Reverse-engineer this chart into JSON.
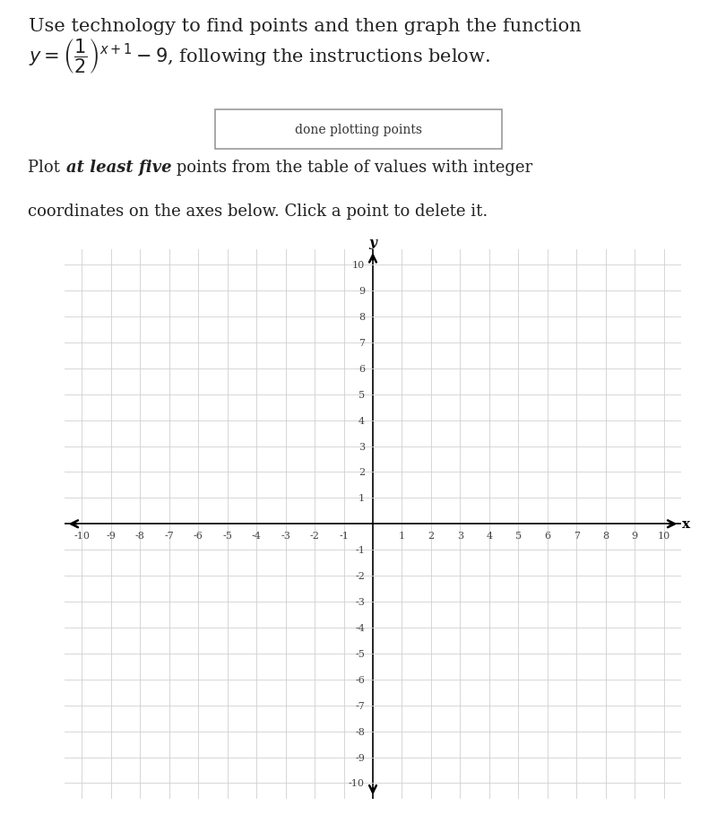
{
  "title_line1": "Use technology to find points and then graph the function",
  "button_text": "done plotting points",
  "xmin": -10,
  "xmax": 10,
  "ymin": -10,
  "ymax": 10,
  "grid_color": "#d0d0d0",
  "axis_color": "#000000",
  "background_color": "#ffffff",
  "tick_label_color": "#444444",
  "axis_label_x": "x",
  "axis_label_y": "y",
  "font_size_ticks": 8,
  "font_size_title": 15,
  "font_size_body": 13,
  "font_size_button": 10
}
